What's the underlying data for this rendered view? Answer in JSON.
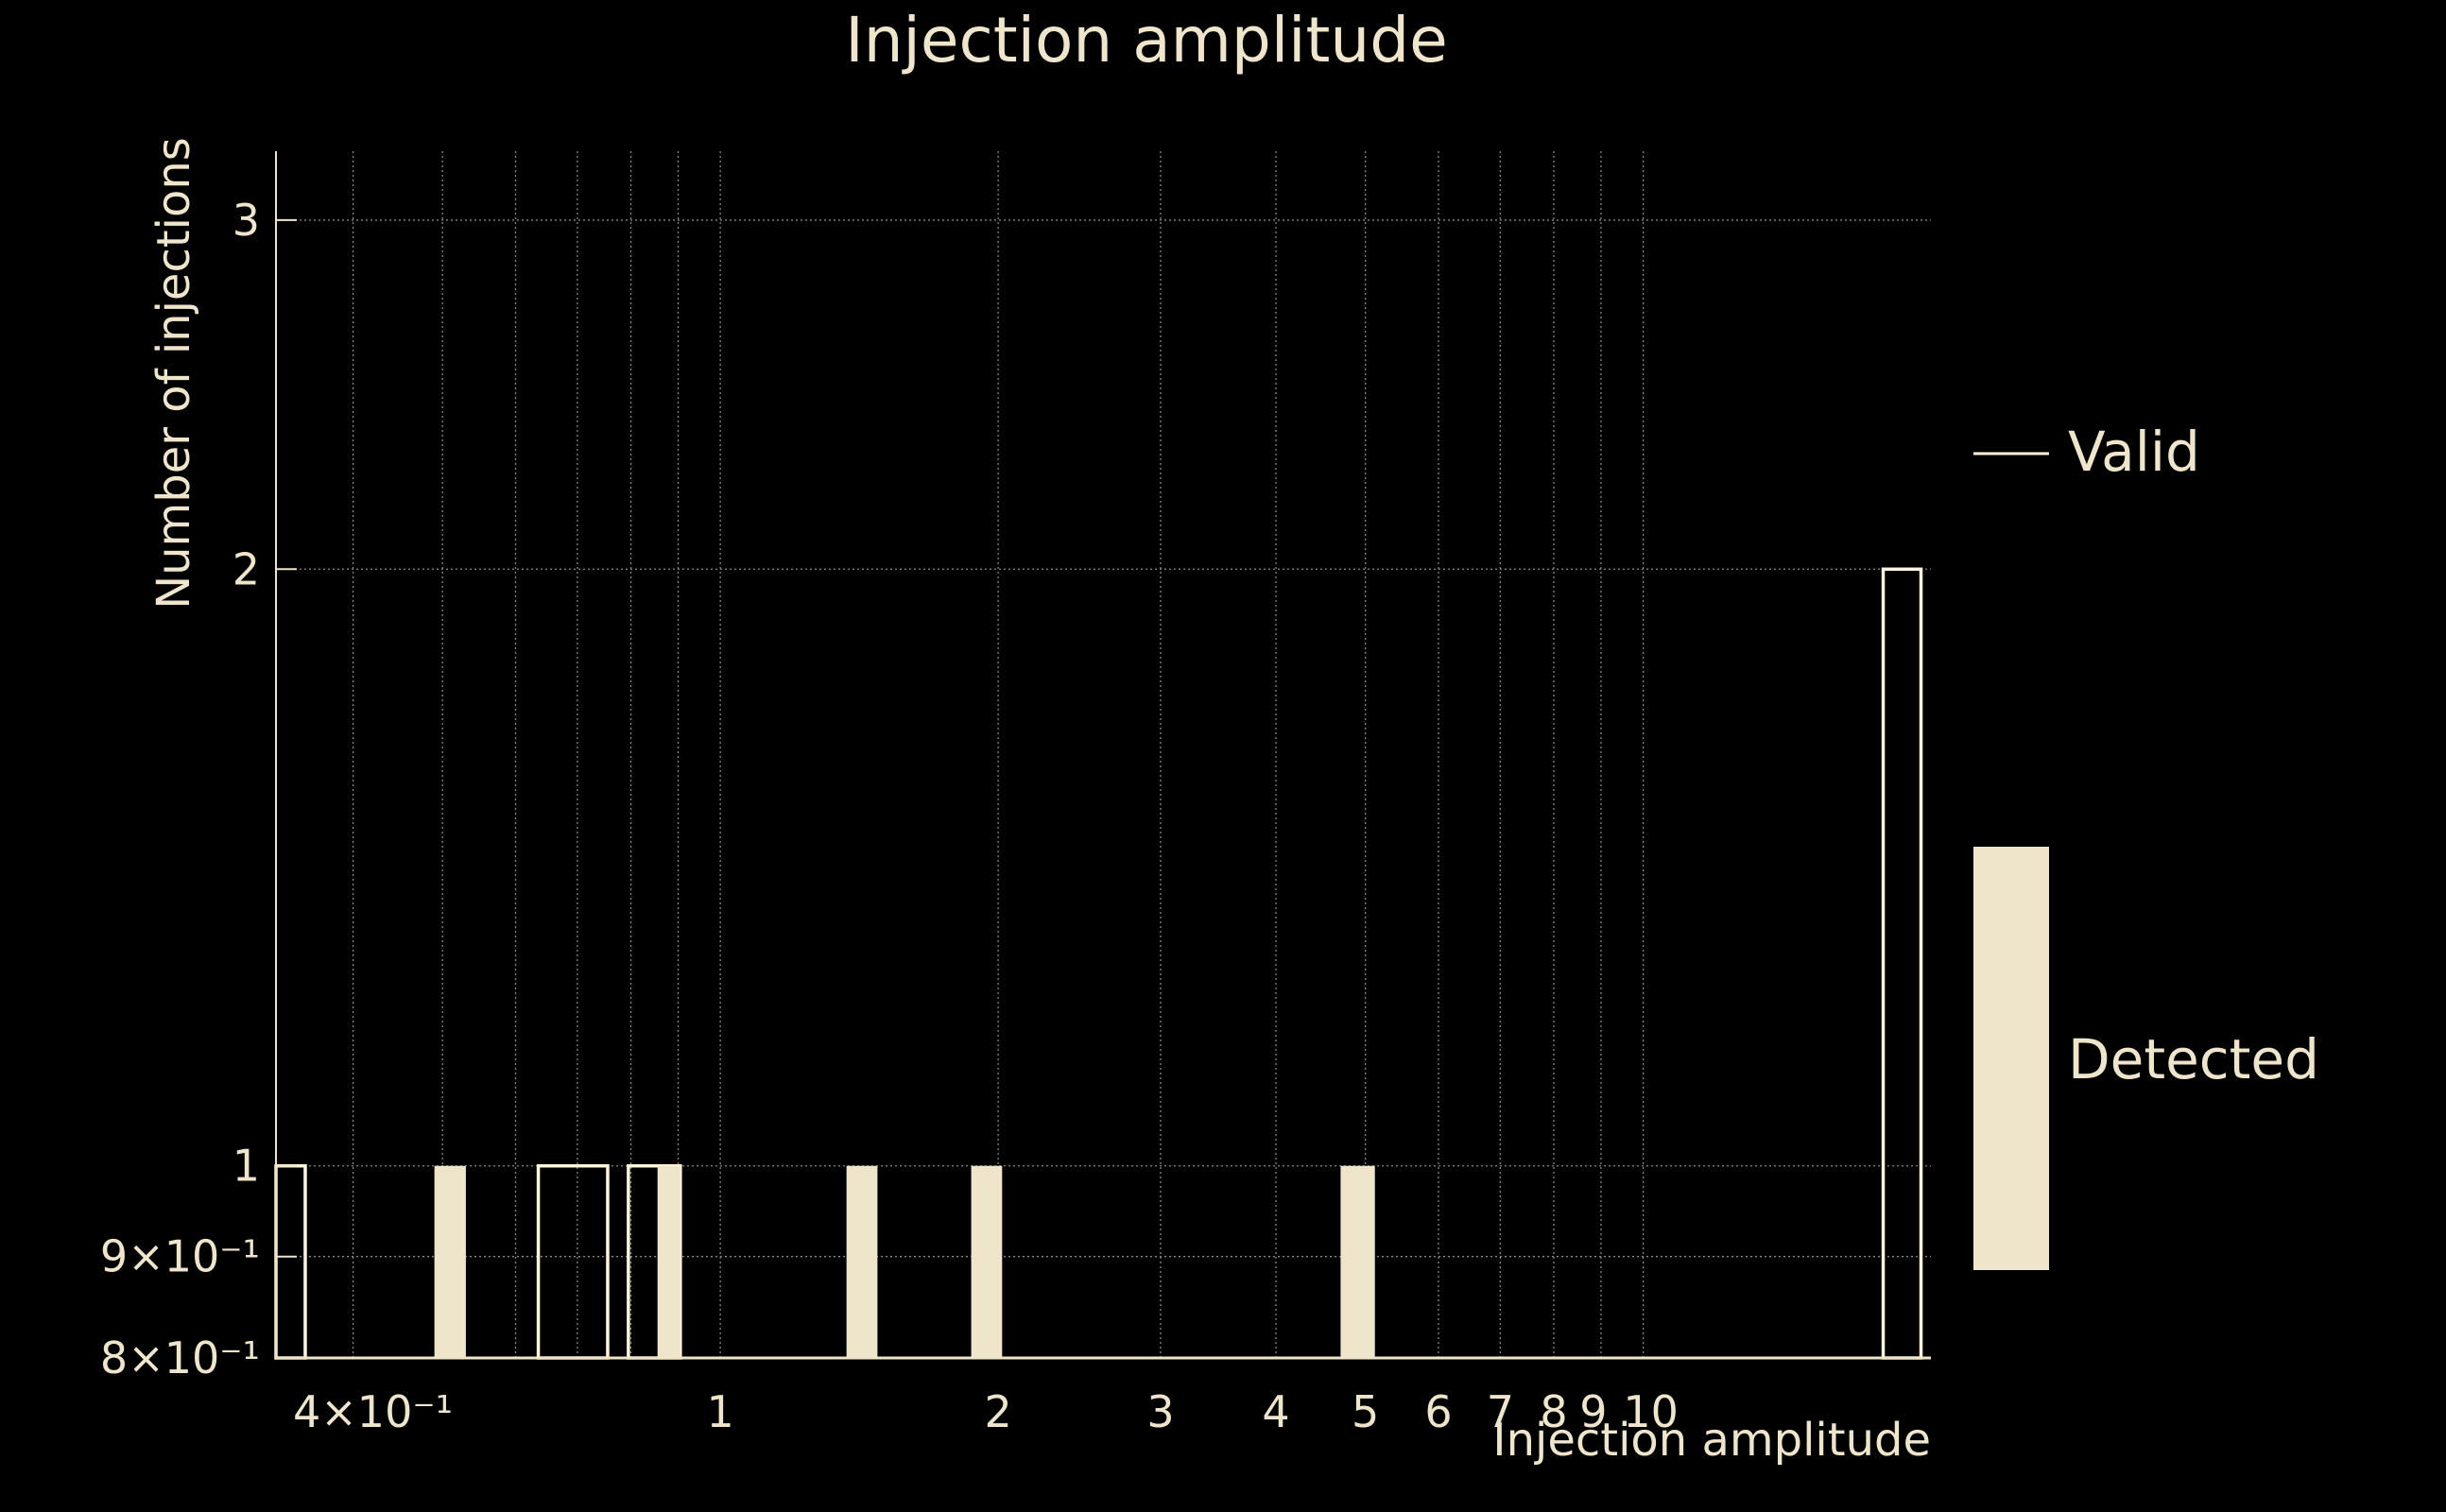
{
  "chart_data": {
    "type": "bar",
    "title": "Injection amplitude",
    "xlabel": "Injection amplitude",
    "ylabel": "Number of injections",
    "xscale": "log",
    "yscale": "log",
    "xlim": [
      0.33,
      20.5
    ],
    "ylim": [
      0.8,
      3.25
    ],
    "grid": true,
    "legend_position": "right",
    "x_ticks": [
      {
        "value": 0.4,
        "label": "4×10⁻¹"
      },
      {
        "value": 1,
        "label": "1"
      },
      {
        "value": 2,
        "label": "2"
      },
      {
        "value": 3,
        "label": "3"
      },
      {
        "value": 4,
        "label": "4"
      },
      {
        "value": 5,
        "label": "5"
      },
      {
        "value": 6,
        "label": "6"
      },
      {
        "value": 7,
        "label": "7"
      },
      {
        "value": 8,
        "label": "8"
      },
      {
        "value": 9,
        "label": "9"
      },
      {
        "value": 10,
        "label": "10"
      }
    ],
    "x_grid_extra": [
      0.5,
      0.6,
      0.7,
      0.8,
      0.9
    ],
    "y_ticks": [
      {
        "value": 0.8,
        "label": "8×10⁻¹"
      },
      {
        "value": 0.9,
        "label": "9×10⁻¹"
      },
      {
        "value": 1,
        "label": "1"
      },
      {
        "value": 2,
        "label": "2"
      },
      {
        "value": 3,
        "label": "3"
      }
    ],
    "series": [
      {
        "name": "Valid",
        "style": "outline",
        "color": "#fff6dc",
        "bars": [
          {
            "x0": 0.33,
            "x1": 0.355,
            "value": 1
          },
          {
            "x0": 0.635,
            "x1": 0.755,
            "value": 1
          },
          {
            "x0": 0.795,
            "x1": 0.905,
            "value": 1
          },
          {
            "x0": 18.2,
            "x1": 20.0,
            "value": 2
          }
        ]
      },
      {
        "name": "Detected",
        "style": "filled",
        "color": "#efe5cb",
        "bars": [
          {
            "x0": 0.49,
            "x1": 0.53,
            "value": 1
          },
          {
            "x0": 0.855,
            "x1": 0.905,
            "value": 1
          },
          {
            "x0": 1.37,
            "x1": 1.48,
            "value": 1
          },
          {
            "x0": 1.87,
            "x1": 2.02,
            "value": 1
          },
          {
            "x0": 4.7,
            "x1": 5.12,
            "value": 1
          }
        ]
      }
    ]
  }
}
